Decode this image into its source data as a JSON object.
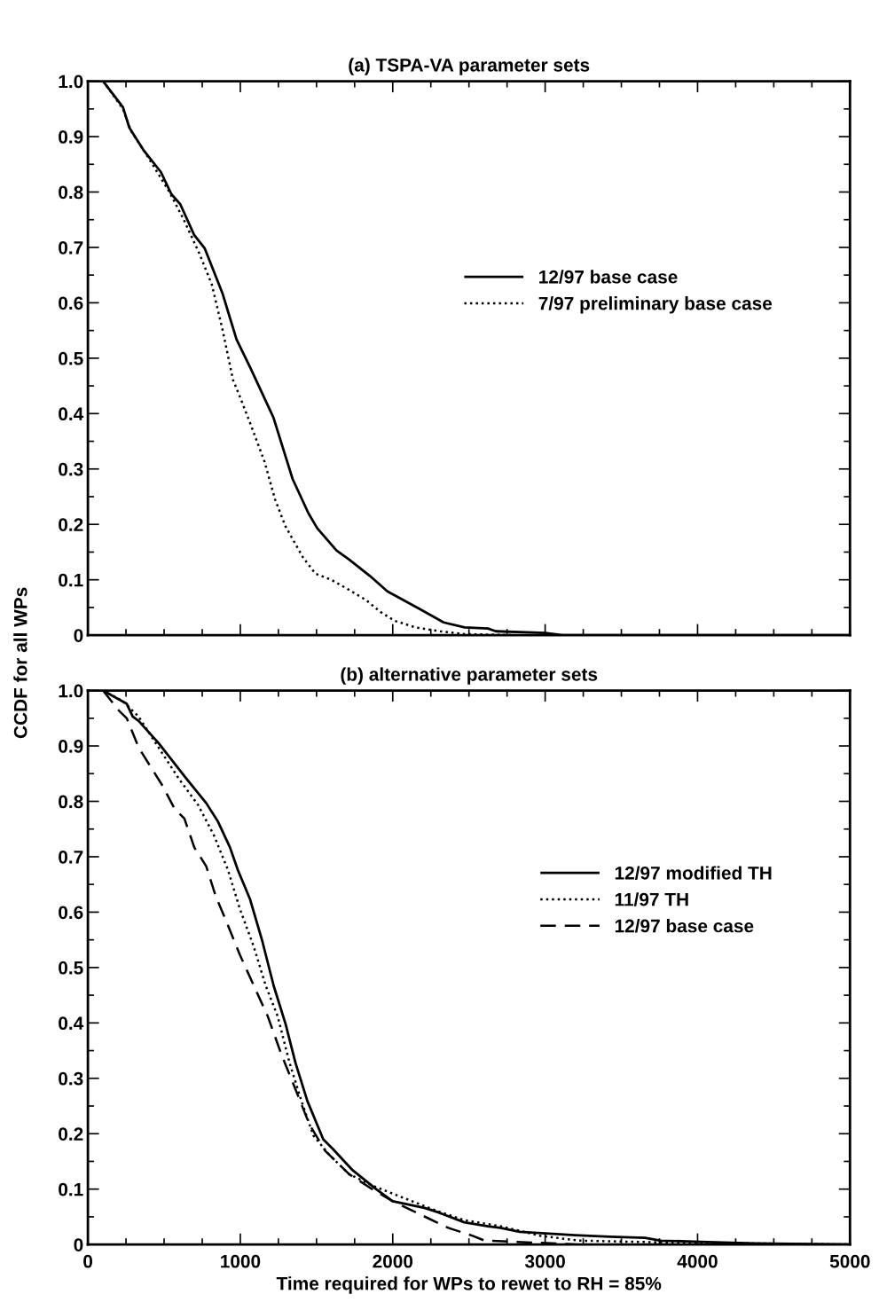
{
  "chart_data": [
    {
      "type": "line",
      "title": "(a) TSPA-VA parameter sets",
      "legend": "right",
      "grid": false,
      "tick_labels": "y",
      "xlim": [
        0,
        5000
      ],
      "xticks": [
        0,
        1000,
        2000,
        3000,
        4000,
        5000
      ],
      "ylim": [
        0,
        1
      ],
      "yticks": [
        0,
        0.1,
        0.2,
        0.3,
        0.4,
        0.5,
        0.6,
        0.7,
        0.8,
        0.9,
        {
          "value": 1,
          "label": "1.0"
        }
      ],
      "series": [
        {
          "name": "12/97 base case",
          "color": "#000000",
          "line_style": "solid",
          "x": [
            100,
            230,
            272,
            364,
            479,
            548,
            606,
            698,
            767,
            882,
            975,
            1067,
            1217,
            1343,
            1447,
            1505,
            1631,
            1712,
            1850,
            1965,
            2173,
            2334,
            2472,
            2625,
            2676,
            3000,
            3113,
            5000
          ],
          "values": [
            1.0,
            0.953,
            0.916,
            0.876,
            0.836,
            0.796,
            0.778,
            0.722,
            0.698,
            0.618,
            0.534,
            0.482,
            0.393,
            0.282,
            0.22,
            0.193,
            0.153,
            0.137,
            0.107,
            0.079,
            0.048,
            0.023,
            0.014,
            0.012,
            0.007,
            0.004,
            0,
            0
          ]
        },
        {
          "name": "7/97 preliminary base case",
          "color": "#000000",
          "line_style": "dotted",
          "x": [
            100,
            230,
            283,
            399,
            537,
            629,
            733,
            813,
            882,
            952,
            998,
            1067,
            1159,
            1228,
            1297,
            1412,
            1493,
            1597,
            1712,
            1827,
            1919,
            2012,
            2150,
            2311,
            2472,
            2800,
            5000
          ],
          "values": [
            1.0,
            0.95,
            0.91,
            0.861,
            0.799,
            0.75,
            0.688,
            0.633,
            0.553,
            0.461,
            0.43,
            0.381,
            0.313,
            0.245,
            0.196,
            0.14,
            0.111,
            0.1,
            0.082,
            0.063,
            0.042,
            0.026,
            0.014,
            0.007,
            0.002,
            0,
            0
          ]
        }
      ]
    },
    {
      "type": "line",
      "title": "(b) alternative parameter sets",
      "legend": "right",
      "grid": false,
      "xlabel": "Time required for WPs to rewet to RH = 85%",
      "ylabel": "CCDF for all WPs",
      "xlim": [
        0,
        5000
      ],
      "xticks": [
        0,
        1000,
        2000,
        3000,
        4000,
        5000
      ],
      "ylim": [
        0,
        1
      ],
      "yticks": [
        0,
        0.1,
        0.2,
        0.3,
        0.4,
        0.5,
        0.6,
        0.7,
        0.8,
        0.9,
        {
          "value": 1,
          "label": "1.0"
        }
      ],
      "series": [
        {
          "name": "12/97 modified TH",
          "color": "#000000",
          "line_style": "solid",
          "x": [
            99,
            255,
            294,
            333,
            464,
            646,
            776,
            854,
            932,
            984,
            1063,
            1141,
            1219,
            1297,
            1362,
            1440,
            1544,
            1609,
            1737,
            1896,
            2000,
            2208,
            2299,
            2469,
            2625,
            2706,
            2834,
            3194,
            3425,
            3656,
            3759,
            4016,
            4375,
            4991
          ],
          "values": [
            1.0,
            0.976,
            0.953,
            0.945,
            0.905,
            0.841,
            0.797,
            0.763,
            0.717,
            0.676,
            0.624,
            0.551,
            0.467,
            0.398,
            0.328,
            0.259,
            0.19,
            0.172,
            0.134,
            0.099,
            0.078,
            0.066,
            0.058,
            0.04,
            0.033,
            0.03,
            0.023,
            0.017,
            0.014,
            0.012,
            0.007,
            0.005,
            0.002,
            0
          ]
        },
        {
          "name": "11/97 TH",
          "color": "#000000",
          "line_style": "dotted",
          "x": [
            99,
            229,
            333,
            464,
            594,
            724,
            828,
            919,
            997,
            1089,
            1167,
            1245,
            1323,
            1401,
            1479,
            1583,
            1714,
            1870,
            2026,
            2286,
            2469,
            2706,
            2963,
            3220,
            3734,
            4991
          ],
          "values": [
            1.0,
            0.981,
            0.953,
            0.897,
            0.842,
            0.793,
            0.738,
            0.676,
            0.606,
            0.537,
            0.467,
            0.412,
            0.328,
            0.259,
            0.197,
            0.162,
            0.127,
            0.106,
            0.089,
            0.061,
            0.044,
            0.033,
            0.016,
            0.007,
            0.004,
            0
          ]
        },
        {
          "name": "12/97 base case",
          "color": "#000000",
          "line_style": "dashed",
          "x": [
            99,
            203,
            255,
            333,
            490,
            568,
            633,
            698,
            776,
            841,
            906,
            997,
            1089,
            1180,
            1271,
            1362,
            1453,
            1557,
            1714,
            1870,
            2000,
            2182,
            2365,
            2521,
            2603,
            2963,
            3220
          ],
          "values": [
            1.0,
            0.964,
            0.95,
            0.897,
            0.828,
            0.787,
            0.769,
            0.717,
            0.683,
            0.627,
            0.585,
            0.523,
            0.467,
            0.412,
            0.342,
            0.28,
            0.217,
            0.169,
            0.127,
            0.099,
            0.078,
            0.054,
            0.03,
            0.016,
            0.007,
            0.003,
            0
          ]
        }
      ]
    }
  ]
}
